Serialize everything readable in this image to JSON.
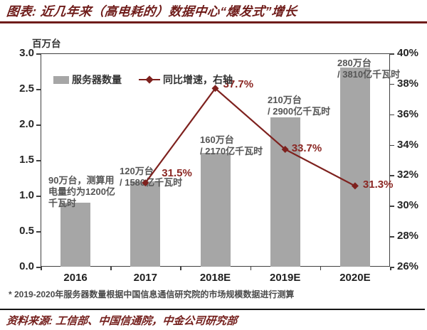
{
  "header": {
    "title": "图表: 近几年来（高电耗的）数据中心“爆发式”增长"
  },
  "chart_data": {
    "type": "combo-bar-line",
    "unit_label": "百万台",
    "categories": [
      "2016",
      "2017",
      "2018E",
      "2019E",
      "2020E"
    ],
    "series": [
      {
        "name": "服务器数量",
        "type": "bar",
        "axis": "left",
        "values": [
          0.9,
          1.2,
          1.6,
          2.1,
          2.8
        ]
      },
      {
        "name": "同比增速，右轴",
        "type": "line",
        "axis": "right",
        "values": [
          null,
          31.5,
          37.7,
          33.7,
          31.3
        ],
        "point_labels": [
          "",
          "31.5%",
          "37.7%",
          "33.7%",
          "31.3%"
        ]
      }
    ],
    "left_axis": {
      "min": 0,
      "max": 3,
      "step": 0.5,
      "tick_labels": [
        "3.0",
        "2.5",
        "2.0",
        "1.5",
        "1.0",
        "0.5",
        "0.0"
      ]
    },
    "right_axis": {
      "min": 26,
      "max": 40,
      "step": 2,
      "tick_labels": [
        "40%",
        "38%",
        "36%",
        "34%",
        "32%",
        "30%",
        "28%",
        "26%"
      ]
    },
    "bar_annotations": [
      "90万台，测算用\n电量约为1200亿\n千瓦时",
      "120万台\n/ 1580亿千瓦时",
      "160万台\n/ 2170亿千瓦时",
      "210万台\n/ 2900亿千瓦时",
      "280万台\n/ 3810亿千瓦时"
    ],
    "legend_position": "top-left-inside",
    "grid": false,
    "colors": {
      "bar": "#a6a6a6",
      "line": "#7e211e",
      "percent_label": "#8b2723",
      "accent_maroon": "#6f1c1a"
    }
  },
  "footnote": "* 2019-2020年服务器数量根据中国信息通信研究院的市场规模数据进行测算",
  "source": "资料来源: 工信部、中国信通院，中金公司研究部"
}
